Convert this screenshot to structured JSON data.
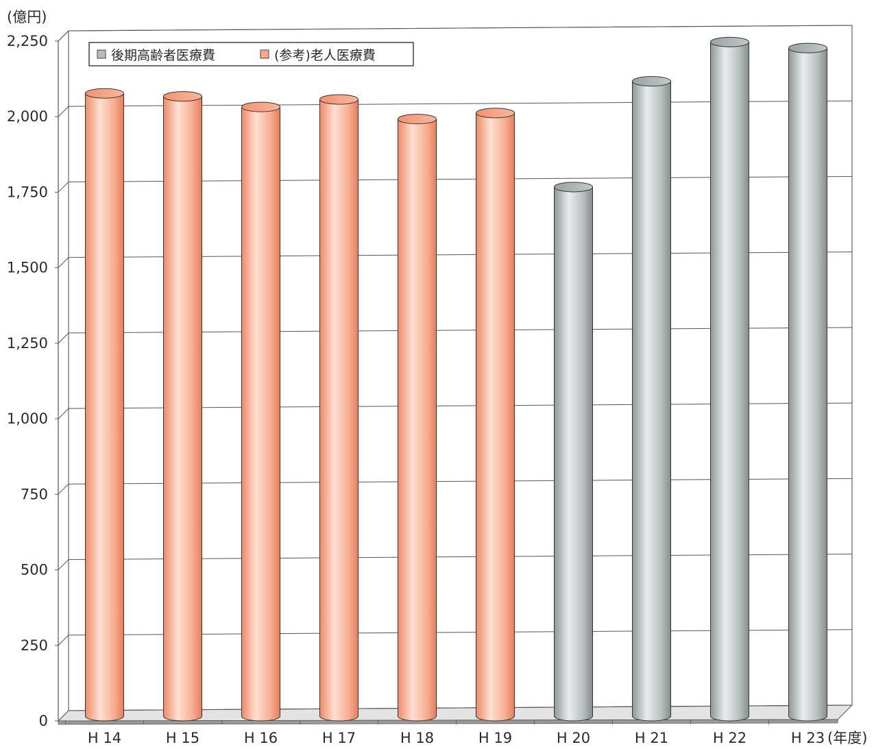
{
  "chart_data": {
    "type": "bar",
    "unit_label": "(億円)",
    "x_unit_label": "(年度)",
    "categories": [
      "H 14",
      "H 15",
      "H 16",
      "H 17",
      "H 18",
      "H 19",
      "H 20",
      "H 21",
      "H 22",
      "H 23"
    ],
    "series": [
      {
        "name": "(参考)老人医療費",
        "color": "#f6a98a",
        "values": [
          2060,
          2050,
          2015,
          2040,
          1975,
          1995,
          null,
          null,
          null,
          null
        ]
      },
      {
        "name": "後期高齢者医療費",
        "color": "#b7bcbc",
        "values": [
          null,
          null,
          null,
          null,
          null,
          null,
          1750,
          2100,
          2230,
          2210
        ]
      }
    ],
    "legend_order": [
      "後期高齢者医療費",
      "(参考)老人医療費"
    ],
    "legend_position": "top-left",
    "ylim": [
      0,
      2250
    ],
    "yticks": [
      0,
      250,
      500,
      750,
      1000,
      1250,
      1500,
      1750,
      2000,
      2250
    ],
    "ytick_labels": [
      "0",
      "250",
      "500",
      "750",
      "1,000",
      "1,250",
      "1,500",
      "1,750",
      "2,000",
      "2,250"
    ],
    "grid": true,
    "style": "3d-cylinder"
  }
}
